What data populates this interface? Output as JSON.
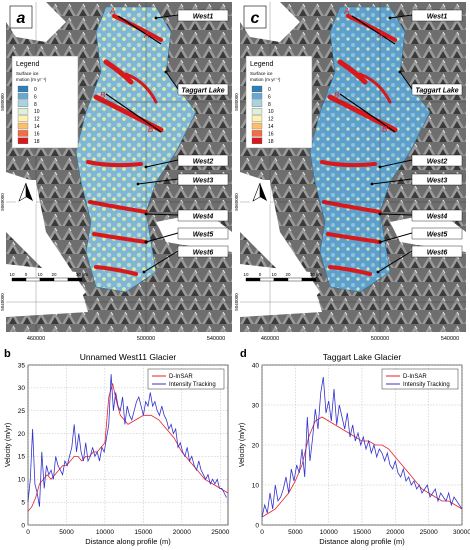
{
  "maps": [
    {
      "panel_letter": "a",
      "legend_title": "Legend",
      "legend_subtitle_1": "Surface ice",
      "legend_subtitle_2": "motion (m yr⁻¹)",
      "legend_values": [
        "0",
        "6",
        "8",
        "10",
        "12",
        "14",
        "16",
        "18"
      ],
      "legend_colors": [
        "#2c7fb8",
        "#67a9cf",
        "#a6d4e0",
        "#e0f0d8",
        "#fdf0b0",
        "#fdbf6f",
        "#f46d43",
        "#d7191c"
      ],
      "glacier_labels": [
        "West1",
        "Taggart Lake",
        "West2",
        "West3",
        "West4",
        "West5",
        "West6"
      ],
      "profile_labels": [
        "A",
        "A'",
        "B",
        "B'"
      ],
      "scale_ticks": [
        "10",
        "0",
        "10",
        "20",
        "30 km"
      ],
      "x_ticks": [
        "460000",
        "500000",
        "540000"
      ],
      "y_ticks": [
        "5080000",
        "5060000",
        "5040000"
      ]
    },
    {
      "panel_letter": "c",
      "legend_title": "Legend",
      "legend_subtitle_1": "Surface ice",
      "legend_subtitle_2": "motion (m yr⁻¹)",
      "legend_values": [
        "0",
        "6",
        "8",
        "10",
        "12",
        "14",
        "16",
        "18"
      ],
      "legend_colors": [
        "#2c7fb8",
        "#67a9cf",
        "#a6d4e0",
        "#e0f0d8",
        "#fdf0b0",
        "#fdbf6f",
        "#f46d43",
        "#d7191c"
      ],
      "glacier_labels": [
        "West1",
        "Taggart Lake",
        "West2",
        "West3",
        "West4",
        "West5",
        "West6"
      ],
      "profile_labels": [
        "A",
        "A'",
        "B",
        "B'"
      ],
      "scale_ticks": [
        "10",
        "0",
        "10",
        "20",
        "30 km"
      ],
      "x_ticks": [
        "460000",
        "500000",
        "540000"
      ],
      "y_ticks": [
        "5080000",
        "5060000",
        "5040000"
      ]
    }
  ],
  "chart_data": [
    {
      "panel_letter": "b",
      "type": "line",
      "title": "Unnamed West11 Glacier",
      "xlabel": "Distance along profile (m)",
      "ylabel": "Velocity (m/yr)",
      "xlim": [
        0,
        26000
      ],
      "ylim": [
        0,
        35
      ],
      "xticks": [
        0,
        5000,
        10000,
        15000,
        20000,
        25000
      ],
      "yticks": [
        0,
        5,
        10,
        15,
        20,
        25,
        30,
        35
      ],
      "grid": true,
      "legend_position": "top-right",
      "series": [
        {
          "name": "D-InSAR",
          "color": "#e8202a",
          "x": [
            0,
            500,
            1000,
            1500,
            2000,
            2500,
            3000,
            3500,
            4000,
            4500,
            5000,
            5500,
            6000,
            6500,
            7000,
            7500,
            8000,
            8500,
            9000,
            9500,
            10000,
            10500,
            11000,
            11500,
            12000,
            12500,
            13000,
            14000,
            15000,
            16000,
            17000,
            18000,
            19000,
            20000,
            21000,
            22000,
            23000,
            24000,
            25000,
            26000
          ],
          "y": [
            3,
            4,
            6,
            9,
            10,
            11,
            10,
            11,
            12,
            13,
            13,
            14,
            15,
            15,
            14,
            15,
            15,
            16,
            16,
            17,
            18,
            28,
            31,
            27,
            24,
            23,
            22,
            23,
            24,
            24,
            23,
            21,
            19,
            16,
            14,
            12,
            10,
            9,
            8,
            7
          ]
        },
        {
          "name": "Intensity Tracking",
          "color": "#3333cc",
          "x": [
            0,
            300,
            600,
            900,
            1200,
            1500,
            1800,
            2100,
            2400,
            2700,
            3000,
            3300,
            3600,
            3900,
            4200,
            4500,
            4800,
            5100,
            5400,
            5700,
            6000,
            6300,
            6600,
            6900,
            7200,
            7500,
            7800,
            8100,
            8400,
            8700,
            9000,
            9300,
            9600,
            9900,
            10200,
            10500,
            10800,
            11100,
            11400,
            11700,
            12000,
            12300,
            12600,
            12900,
            13200,
            13500,
            13800,
            14100,
            14400,
            14700,
            15000,
            15300,
            15600,
            15900,
            16200,
            16500,
            16800,
            17100,
            17400,
            17700,
            18000,
            18300,
            18600,
            18900,
            19200,
            19500,
            19800,
            20100,
            20400,
            20700,
            21000,
            21300,
            21600,
            21900,
            22200,
            22500,
            22800,
            23100,
            23400,
            23700,
            24000,
            24300,
            24600,
            24900,
            25200,
            25500,
            25800
          ],
          "y": [
            5,
            10,
            21,
            9,
            7,
            4,
            16,
            8,
            13,
            11,
            12,
            10,
            15,
            13,
            12,
            11,
            14,
            13,
            15,
            17,
            22,
            16,
            20,
            16,
            14,
            18,
            14,
            15,
            17,
            15,
            16,
            14,
            17,
            16,
            19,
            22,
            33,
            25,
            29,
            26,
            25,
            28,
            22,
            26,
            24,
            23,
            25,
            27,
            28,
            26,
            24,
            27,
            26,
            29,
            26,
            27,
            25,
            24,
            26,
            24,
            23,
            21,
            22,
            20,
            21,
            17,
            18,
            16,
            15,
            17,
            14,
            15,
            13,
            12,
            14,
            12,
            11,
            10,
            11,
            9,
            10,
            9,
            10,
            8,
            8,
            7,
            6
          ]
        }
      ]
    },
    {
      "panel_letter": "d",
      "type": "line",
      "title": "Taggart Lake Glacier",
      "xlabel": "Distance along profile (m)",
      "ylabel": "Velocity (m/yr)",
      "xlim": [
        0,
        30000
      ],
      "ylim": [
        0,
        40
      ],
      "xticks": [
        0,
        5000,
        10000,
        15000,
        20000,
        25000,
        30000
      ],
      "yticks": [
        0,
        10,
        20,
        30,
        40
      ],
      "grid": true,
      "legend_position": "top-right",
      "series": [
        {
          "name": "D-InSAR",
          "color": "#e8202a",
          "x": [
            0,
            1000,
            2000,
            3000,
            4000,
            5000,
            6000,
            7000,
            8000,
            9000,
            10000,
            11000,
            12000,
            13000,
            14000,
            15000,
            16000,
            17000,
            18000,
            19000,
            20000,
            21000,
            22000,
            23000,
            24000,
            25000,
            26000,
            27000,
            28000,
            29000,
            30000
          ],
          "y": [
            2,
            3,
            4,
            6,
            8,
            11,
            15,
            22,
            26,
            27,
            26,
            25,
            24,
            23,
            22,
            21,
            21,
            20,
            20,
            19,
            17,
            15,
            13,
            11,
            9,
            8,
            7,
            6,
            6,
            5,
            4
          ]
        },
        {
          "name": "Intensity Tracking",
          "color": "#3333cc",
          "x": [
            0,
            400,
            800,
            1200,
            1600,
            2000,
            2400,
            2800,
            3200,
            3600,
            4000,
            4400,
            4800,
            5200,
            5600,
            6000,
            6400,
            6800,
            7200,
            7600,
            8000,
            8400,
            8800,
            9200,
            9600,
            10000,
            10400,
            10800,
            11200,
            11600,
            12000,
            12400,
            12800,
            13200,
            13600,
            14000,
            14400,
            14800,
            15200,
            15600,
            16000,
            16400,
            16800,
            17200,
            17600,
            18000,
            18400,
            18800,
            19200,
            19600,
            20000,
            20400,
            20800,
            21200,
            21600,
            22000,
            22400,
            22800,
            23200,
            23600,
            24000,
            24400,
            24800,
            25200,
            25600,
            26000,
            26400,
            26800,
            27200,
            27600,
            28000,
            28400,
            28800,
            29200,
            29600,
            30000
          ],
          "y": [
            2,
            5,
            3,
            8,
            4,
            10,
            6,
            7,
            9,
            12,
            8,
            14,
            11,
            15,
            13,
            19,
            12,
            27,
            16,
            22,
            29,
            24,
            33,
            37,
            28,
            31,
            26,
            34,
            25,
            30,
            27,
            24,
            28,
            22,
            25,
            21,
            23,
            20,
            22,
            19,
            21,
            18,
            20,
            17,
            19,
            18,
            16,
            18,
            15,
            14,
            16,
            13,
            12,
            14,
            11,
            12,
            10,
            11,
            9,
            10,
            8,
            9,
            10,
            7,
            8,
            9,
            6,
            8,
            7,
            6,
            8,
            5,
            7,
            6,
            5,
            4
          ]
        }
      ]
    }
  ]
}
